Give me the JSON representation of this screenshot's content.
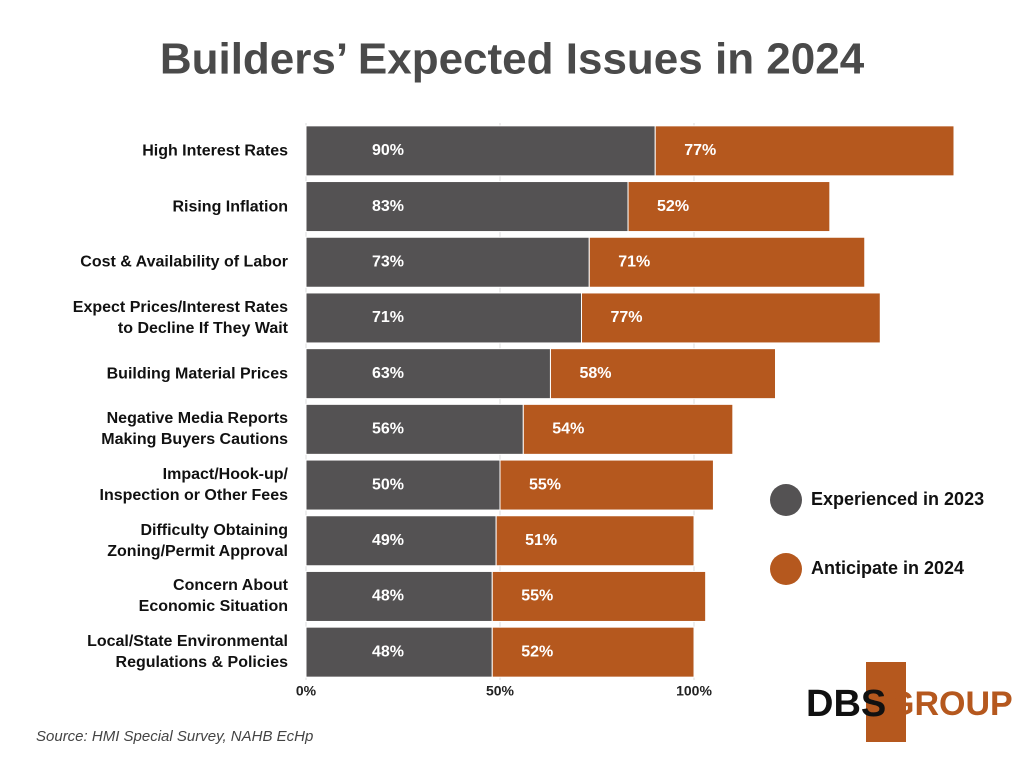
{
  "chart_data": {
    "type": "stacked-bar-horizontal",
    "title": "Builders’ Expected Issues in 2024",
    "categories": [
      "High Interest Rates",
      "Rising Inflation",
      "Cost & Availability of Labor",
      "Expect Prices/Interest Rates\nto Decline If They Wait",
      "Building Material Prices",
      "Negative Media Reports\nMaking Buyers Cautions",
      "Impact/Hook-up/\nInspection or Other Fees",
      "Difficulty Obtaining\nZoning/Permit Approval",
      "Concern About\nEconomic Situation",
      "Local/State Environmental\nRegulations  & Policies"
    ],
    "series": [
      {
        "name": "Experienced in 2023",
        "color": "#545253",
        "values": [
          90,
          83,
          73,
          71,
          63,
          56,
          50,
          49,
          48,
          48
        ],
        "value_labels": [
          "90%",
          "83%",
          "73%",
          "71%",
          "63%",
          "56%",
          "50%",
          "49%",
          "48%",
          "48%"
        ]
      },
      {
        "name": "Anticipate in 2024",
        "color": "#b5581e",
        "values": [
          77,
          52,
          71,
          77,
          58,
          54,
          55,
          51,
          55,
          52
        ],
        "value_labels": [
          "77%",
          "52%",
          "71%",
          "77%",
          "58%",
          "54%",
          "55%",
          "51%",
          "55%",
          "52%"
        ]
      }
    ],
    "xlim": [
      0,
      167
    ],
    "xticks": [
      {
        "value": 0,
        "label": "0%"
      },
      {
        "value": 50,
        "label": "50%"
      },
      {
        "value": 100,
        "label": "100%"
      }
    ],
    "source": "Source: HMI Special Survey, NAHB EcHp",
    "logo": [
      "DBS",
      "GROUP"
    ]
  }
}
